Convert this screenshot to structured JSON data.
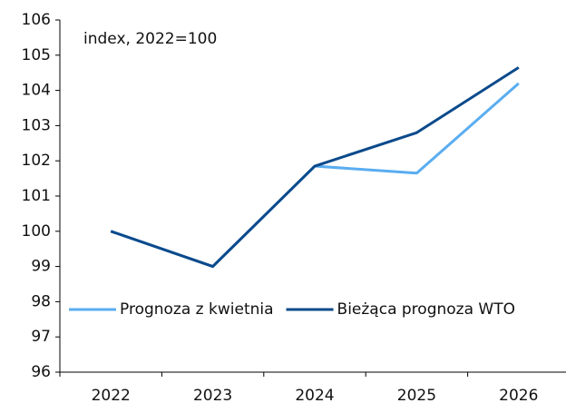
{
  "chart_data": {
    "type": "line",
    "annotation": "index, 2022=100",
    "categories": [
      "2022",
      "2023",
      "2024",
      "2025",
      "2026"
    ],
    "series": [
      {
        "name": "Prognoza z kwietnia",
        "color": "#5aadf0",
        "values": [
          100,
          99,
          101.85,
          101.65,
          104.2
        ]
      },
      {
        "name": "Bieżąca prognoza WTO",
        "color": "#0b4a8b",
        "values": [
          100,
          99,
          101.85,
          102.8,
          104.65
        ]
      }
    ],
    "ylim": [
      96,
      106
    ],
    "yticks": [
      96,
      97,
      98,
      99,
      100,
      101,
      102,
      103,
      104,
      105,
      106
    ],
    "grid": false,
    "legend": "bottom"
  }
}
